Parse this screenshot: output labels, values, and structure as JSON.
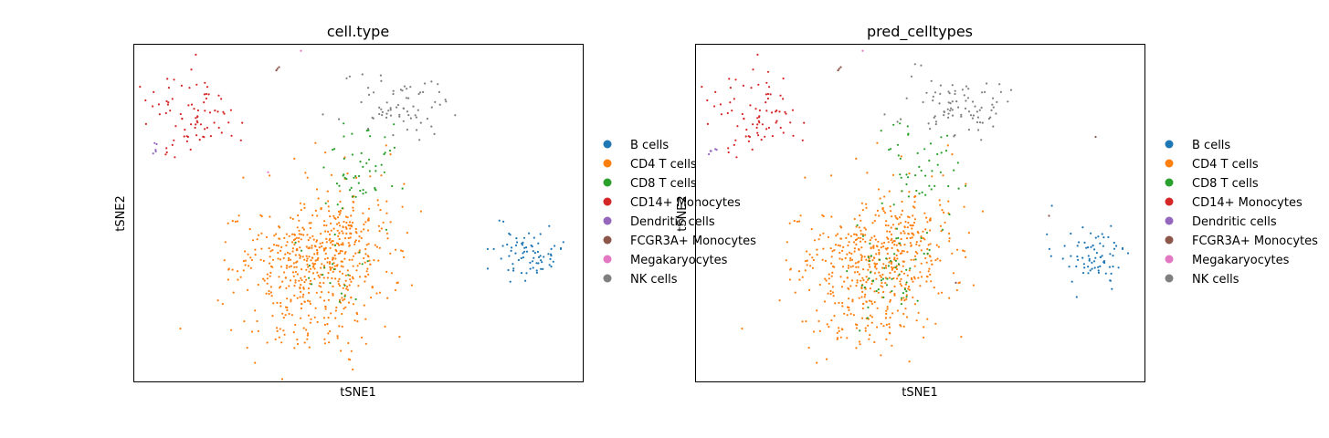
{
  "colors": {
    "B cells": "#1f77b4",
    "CD4 T cells": "#ff7f0e",
    "CD8 T cells": "#2ca02c",
    "CD14+ Monocytes": "#d62728",
    "Dendritic cells": "#9467bd",
    "FCGR3A+ Monocytes": "#8c564b",
    "Megakaryocytes": "#e377c2",
    "NK cells": "#7f7f7f"
  },
  "chart_data": [
    {
      "type": "scatter",
      "title": "cell.type",
      "xlabel": "tSNE1",
      "ylabel": "tSNE2",
      "grid": false,
      "ticks": false,
      "legend_position": "right-outside",
      "xlim": [
        -40,
        42
      ],
      "ylim": [
        -32,
        30
      ],
      "legend": [
        "B cells",
        "CD4 T cells",
        "CD8 T cells",
        "CD14+ Monocytes",
        "Dendritic cells",
        "FCGR3A+ Monocytes",
        "Megakaryocytes",
        "NK cells"
      ],
      "series": [
        {
          "name": "CD4 T cells",
          "clusters": [
            {
              "cx": -12,
              "cy": -12,
              "sx": 6.5,
              "sy": 6,
              "n": 200
            },
            {
              "cx": -4,
              "cy": -10,
              "sx": 5.5,
              "sy": 5,
              "n": 260
            },
            {
              "cx": -2,
              "cy": -4,
              "sx": 4.5,
              "sy": 6,
              "n": 120
            },
            {
              "cx": -8,
              "cy": -22,
              "sx": 6,
              "sy": 3,
              "n": 40
            }
          ]
        },
        {
          "name": "B cells",
          "clusters": [
            {
              "cx": 32,
              "cy": -8.5,
              "sx": 3,
              "sy": 2.5,
              "n": 75
            }
          ]
        },
        {
          "name": "NK cells",
          "clusters": [
            {
              "cx": 8,
              "cy": 19,
              "sx": 4.5,
              "sy": 3,
              "n": 70
            }
          ]
        },
        {
          "name": "CD8 T cells",
          "clusters": [
            {
              "cx": 2,
              "cy": 7,
              "sx": 3.5,
              "sy": 4.5,
              "n": 55
            },
            {
              "cx": -4,
              "cy": -13,
              "sx": 4,
              "sy": 3,
              "n": 20
            }
          ]
        },
        {
          "name": "CD14+ Monocytes",
          "clusters": [
            {
              "cx": -29,
              "cy": 17,
              "sx": 4.5,
              "sy": 3.5,
              "n": 80
            }
          ]
        },
        {
          "name": "Dendritic cells",
          "clusters": [
            {
              "cx": -36.5,
              "cy": 10.5,
              "sx": 0.6,
              "sy": 0.6,
              "n": 5
            }
          ]
        },
        {
          "name": "FCGR3A+ Monocytes",
          "points": [
            [
              -13.8,
              25.5
            ],
            [
              -13.5,
              25.8
            ],
            [
              -14,
              25.2
            ]
          ]
        },
        {
          "name": "Megakaryocytes",
          "points": [
            [
              -9.5,
              28.8
            ],
            [
              -15.5,
              6.5
            ]
          ]
        }
      ]
    },
    {
      "type": "scatter",
      "title": "pred_celltypes",
      "xlabel": "tSNE1",
      "ylabel": "tSNE2",
      "grid": false,
      "ticks": false,
      "legend_position": "right-outside",
      "xlim": [
        -40,
        42
      ],
      "ylim": [
        -32,
        30
      ],
      "legend": [
        "B cells",
        "CD4 T cells",
        "CD8 T cells",
        "CD14+ Monocytes",
        "Dendritic cells",
        "FCGR3A+ Monocytes",
        "Megakaryocytes",
        "NK cells"
      ],
      "series": [
        {
          "name": "CD4 T cells",
          "clusters": [
            {
              "cx": -12,
              "cy": -12,
              "sx": 6.5,
              "sy": 6,
              "n": 200
            },
            {
              "cx": -4,
              "cy": -10,
              "sx": 5.5,
              "sy": 5,
              "n": 230
            },
            {
              "cx": -2,
              "cy": -4,
              "sx": 4.5,
              "sy": 6,
              "n": 110
            },
            {
              "cx": -8,
              "cy": -22,
              "sx": 6,
              "sy": 3,
              "n": 40
            }
          ]
        },
        {
          "name": "B cells",
          "clusters": [
            {
              "cx": 32,
              "cy": -8.5,
              "sx": 3,
              "sy": 2.5,
              "n": 75
            }
          ]
        },
        {
          "name": "NK cells",
          "clusters": [
            {
              "cx": 8,
              "cy": 19,
              "sx": 4.5,
              "sy": 3,
              "n": 85
            }
          ]
        },
        {
          "name": "CD8 T cells",
          "clusters": [
            {
              "cx": 1,
              "cy": 7,
              "sx": 3.5,
              "sy": 4.5,
              "n": 50
            },
            {
              "cx": -4,
              "cy": -12,
              "sx": 4,
              "sy": 4,
              "n": 55
            }
          ]
        },
        {
          "name": "CD14+ Monocytes",
          "clusters": [
            {
              "cx": -29,
              "cy": 17,
              "sx": 4.5,
              "sy": 3.5,
              "n": 80
            }
          ]
        },
        {
          "name": "Dendritic cells",
          "clusters": [
            {
              "cx": -36.5,
              "cy": 10.5,
              "sx": 0.6,
              "sy": 0.6,
              "n": 5
            }
          ]
        },
        {
          "name": "FCGR3A+ Monocytes",
          "points": [
            [
              -13.8,
              25.5
            ],
            [
              -13.5,
              25.8
            ],
            [
              -14,
              25.2
            ],
            [
              7.5,
              -13.8
            ],
            [
              24.5,
              -1.5
            ],
            [
              33,
              13
            ]
          ]
        },
        {
          "name": "Megakaryocytes",
          "points": [
            [
              -9.5,
              28.8
            ]
          ]
        }
      ]
    }
  ]
}
